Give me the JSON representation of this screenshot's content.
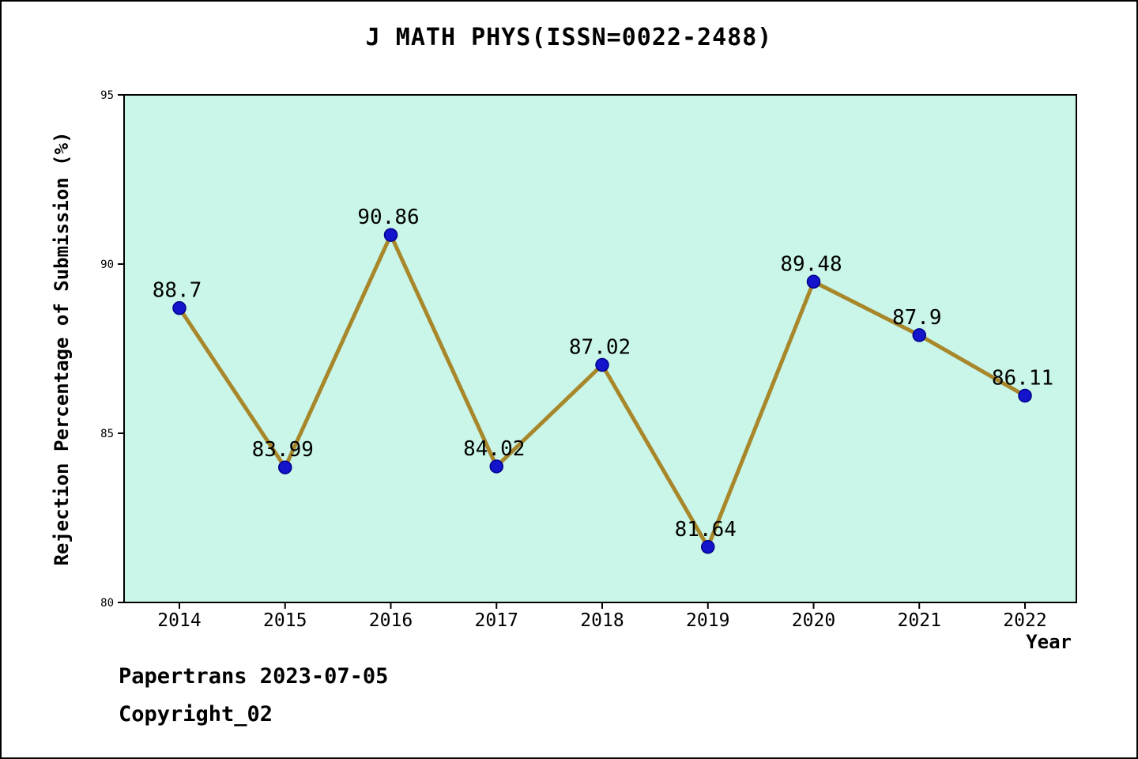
{
  "page": {
    "footer_line1": "Papertrans 2023-07-05",
    "footer_line2": "Copyright_02"
  },
  "chart_data": {
    "type": "line",
    "title": "J MATH PHYS(ISSN=0022-2488)",
    "xlabel": "Year",
    "ylabel": "Rejection Percentage of Submission (%)",
    "x": [
      2014,
      2015,
      2016,
      2017,
      2018,
      2019,
      2020,
      2021,
      2022
    ],
    "values": [
      88.7,
      83.99,
      90.86,
      84.02,
      87.02,
      81.64,
      89.48,
      87.9,
      86.11
    ],
    "point_labels": [
      "88.7",
      "83.99",
      "90.86",
      "84.02",
      "87.02",
      "81.64",
      "89.48",
      "87.9",
      "86.11"
    ],
    "ylim": [
      80,
      95
    ],
    "yticks": [
      80,
      85,
      90,
      95
    ],
    "grid": false,
    "legend": "none",
    "colors": {
      "line": "#a8872b",
      "marker_fill": "#1414cc",
      "marker_edge": "#00008b",
      "plot_bg": "#c9f6e8",
      "axis": "#000000",
      "text": "#000000"
    }
  }
}
